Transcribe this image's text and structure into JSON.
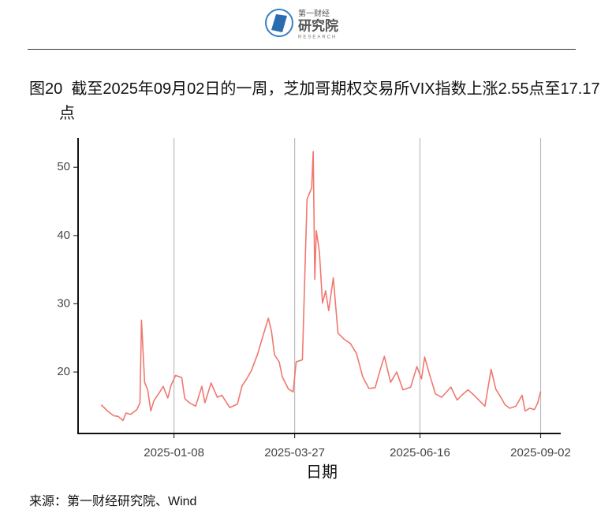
{
  "header": {
    "logo_cn": "第一财经",
    "logo_main": "研究院",
    "logo_en": "RESEARCH"
  },
  "figure_number": "图20",
  "chart_data": {
    "type": "line",
    "title": "截至2025年09月02日的一周，芝加哥期权交易所VIX指数上涨2.55点至17.17点",
    "x_label": "日期",
    "x": [
      "2024-11-22",
      "2024-11-26",
      "2024-11-30",
      "2024-12-03",
      "2024-12-06",
      "2024-12-08",
      "2024-12-11",
      "2024-12-15",
      "2024-12-17",
      "2024-12-18",
      "2024-12-20",
      "2024-12-22",
      "2024-12-24",
      "2024-12-26",
      "2024-12-29",
      "2025-01-01",
      "2025-01-04",
      "2025-01-06",
      "2025-01-09",
      "2025-01-13",
      "2025-01-15",
      "2025-01-18",
      "2025-01-22",
      "2025-01-26",
      "2025-01-28",
      "2025-02-01",
      "2025-02-05",
      "2025-02-08",
      "2025-02-13",
      "2025-02-18",
      "2025-02-21",
      "2025-02-24",
      "2025-02-27",
      "2025-03-03",
      "2025-03-06",
      "2025-03-10",
      "2025-03-12",
      "2025-03-14",
      "2025-03-17",
      "2025-03-19",
      "2025-03-23",
      "2025-03-26",
      "2025-03-28",
      "2025-04-01",
      "2025-04-04",
      "2025-04-07",
      "2025-04-08",
      "2025-04-09",
      "2025-04-10",
      "2025-04-12",
      "2025-04-14",
      "2025-04-16",
      "2025-04-18",
      "2025-04-21",
      "2025-04-24",
      "2025-04-28",
      "2025-05-02",
      "2025-05-06",
      "2025-05-10",
      "2025-05-14",
      "2025-05-18",
      "2025-05-21",
      "2025-05-24",
      "2025-05-28",
      "2025-06-01",
      "2025-06-05",
      "2025-06-10",
      "2025-06-14",
      "2025-06-17",
      "2025-06-19",
      "2025-06-22",
      "2025-06-26",
      "2025-06-30",
      "2025-07-06",
      "2025-07-10",
      "2025-07-13",
      "2025-07-17",
      "2025-07-21",
      "2025-07-24",
      "2025-07-28",
      "2025-08-01",
      "2025-08-04",
      "2025-08-07",
      "2025-08-10",
      "2025-08-13",
      "2025-08-17",
      "2025-08-21",
      "2025-08-23",
      "2025-08-26",
      "2025-08-29",
      "2025-08-31",
      "2025-09-02"
    ],
    "values": [
      15.2,
      14.3,
      13.6,
      13.5,
      12.9,
      14.0,
      13.8,
      14.5,
      15.5,
      27.6,
      18.5,
      17.4,
      14.3,
      15.8,
      16.8,
      17.9,
      16.2,
      18.0,
      19.5,
      19.2,
      16.1,
      15.5,
      15.0,
      17.9,
      15.5,
      18.4,
      16.3,
      16.6,
      14.8,
      15.3,
      18.0,
      19.0,
      20.2,
      22.6,
      24.9,
      27.9,
      26.0,
      22.5,
      21.5,
      19.3,
      17.5,
      17.1,
      21.5,
      21.8,
      45.3,
      47.0,
      52.3,
      33.6,
      40.7,
      37.6,
      30.1,
      31.9,
      29.0,
      33.8,
      25.7,
      24.8,
      24.2,
      22.7,
      19.3,
      17.6,
      17.7,
      20.1,
      22.3,
      18.5,
      20.0,
      17.4,
      17.8,
      20.8,
      19.0,
      22.2,
      19.8,
      16.8,
      16.3,
      17.8,
      15.9,
      16.6,
      17.4,
      16.6,
      15.9,
      15.0,
      20.4,
      17.5,
      16.4,
      15.2,
      14.7,
      15.0,
      16.6,
      14.3,
      14.7,
      14.5,
      15.4,
      17.17
    ],
    "color": "#f07870",
    "xlim": [
      "2024-11-07",
      "2025-09-15"
    ],
    "xticks": [
      "2025-01-08",
      "2025-03-27",
      "2025-06-16",
      "2025-09-02"
    ],
    "ylim": [
      11.0,
      54.3
    ],
    "yticks": [
      20,
      30,
      40,
      50
    ],
    "grid": "x"
  },
  "source": "来源：第一财经研究院、Wind"
}
